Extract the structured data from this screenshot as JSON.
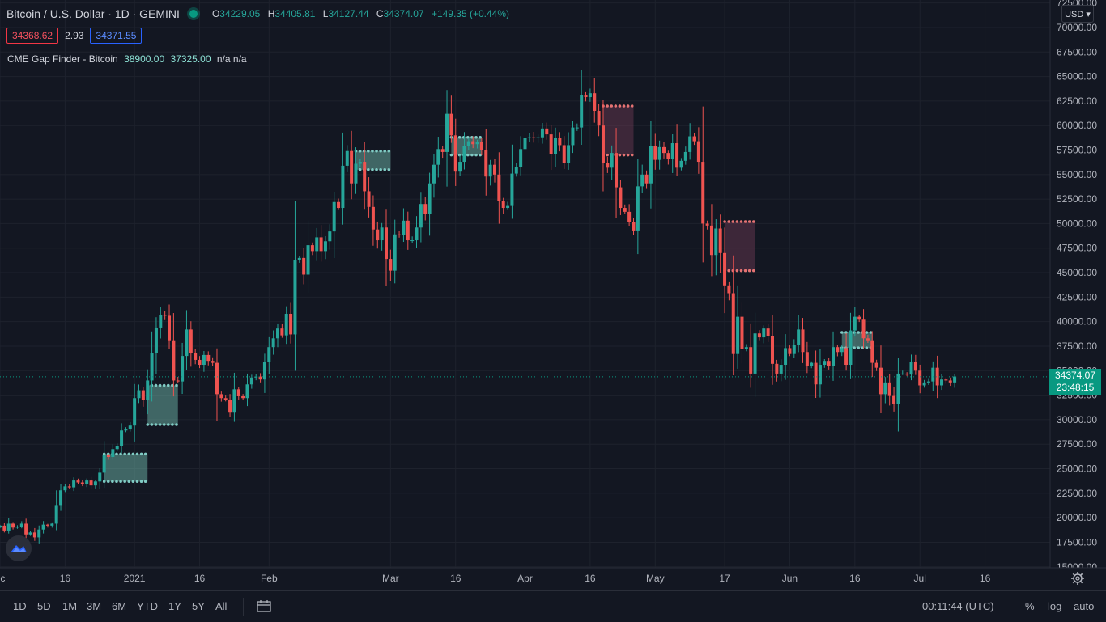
{
  "legend": {
    "title": "Bitcoin / U.S. Dollar · 1D · GEMINI",
    "o_label": "O",
    "o": "34229.05",
    "h_label": "H",
    "h": "34405.81",
    "l_label": "L",
    "l": "34127.44",
    "c_label": "C",
    "c": "34374.07",
    "change": "+149.35 (+0.44%)"
  },
  "quote": {
    "bid": "34368.62",
    "spread": "2.93",
    "ask": "34371.55"
  },
  "indicator": {
    "name": "CME Gap Finder - Bitcoin",
    "v1": "38900.00",
    "v2": "37325.00",
    "v3": "n/a n/a"
  },
  "currency": "USD ▾",
  "last_price": {
    "price": "34374.07",
    "countdown": "23:48:15"
  },
  "bottom": {
    "ranges": [
      "1D",
      "5D",
      "1M",
      "3M",
      "6M",
      "YTD",
      "1Y",
      "5Y",
      "All"
    ],
    "time": "00:11:44 (UTC)",
    "percent": "%",
    "log": "log",
    "auto": "auto"
  },
  "colors": {
    "up": "#26a69a",
    "down": "#ef5350",
    "background": "#131722",
    "grid": "#1e222d"
  },
  "chart_data": {
    "type": "candlestick",
    "title": "Bitcoin / U.S. Dollar · 1D · GEMINI",
    "y_ticks": [
      15000,
      17500,
      20000,
      22500,
      25000,
      27500,
      30000,
      32500,
      35000,
      37500,
      40000,
      42500,
      45000,
      47500,
      50000,
      52500,
      55000,
      57500,
      60000,
      62500,
      65000,
      67500,
      70000,
      72500
    ],
    "y_tick_labels": [
      "15000.00",
      "17500.00",
      "20000.00",
      "22500.00",
      "25000.00",
      "27500.00",
      "30000.00",
      "32500.00",
      "35000.00",
      "37500.00",
      "40000.00",
      "42500.00",
      "45000.00",
      "47500.00",
      "50000.00",
      "52500.00",
      "55000.00",
      "57500.00",
      "60000.00",
      "62500.00",
      "65000.00",
      "67500.00",
      "70000.00",
      "72500.00"
    ],
    "ylim": [
      14900,
      72800
    ],
    "x_start": "2020-12-01",
    "x_end": "2021-07-31",
    "x_ticks": [
      {
        "label": "ec",
        "date": "2020-12-01"
      },
      {
        "label": "16",
        "date": "2020-12-16"
      },
      {
        "label": "2021",
        "date": "2021-01-01"
      },
      {
        "label": "16",
        "date": "2021-01-16"
      },
      {
        "label": "Feb",
        "date": "2021-02-01"
      },
      {
        "label": "Mar",
        "date": "2021-03-01"
      },
      {
        "label": "16",
        "date": "2021-03-16"
      },
      {
        "label": "Apr",
        "date": "2021-04-01"
      },
      {
        "label": "16",
        "date": "2021-04-16"
      },
      {
        "label": "May",
        "date": "2021-05-01"
      },
      {
        "label": "17",
        "date": "2021-05-17"
      },
      {
        "label": "Jun",
        "date": "2021-06-01"
      },
      {
        "label": "16",
        "date": "2021-06-16"
      },
      {
        "label": "Jul",
        "date": "2021-07-01"
      },
      {
        "label": "16",
        "date": "2021-07-16"
      }
    ],
    "last_price": 34374.07,
    "candles_start": "2020-12-01",
    "close": [
      19200,
      18700,
      19400,
      19000,
      19100,
      19400,
      18300,
      18500,
      18000,
      18800,
      19300,
      19200,
      19400,
      21300,
      22800,
      23200,
      23100,
      23800,
      23600,
      23400,
      23800,
      23300,
      23700,
      24600,
      26400,
      26200,
      27000,
      27300,
      28900,
      29000,
      29400,
      32200,
      33000,
      32000,
      34000,
      36800,
      39400,
      40700,
      40600,
      38100,
      34000,
      33900,
      36500,
      39200,
      36800,
      36100,
      35600,
      36600,
      36000,
      35800,
      32600,
      32200,
      32000,
      30800,
      33100,
      32400,
      32200,
      33600,
      34300,
      34400,
      34100,
      35900,
      37400,
      38300,
      39300,
      38600,
      40800,
      38700,
      46300,
      46500,
      44800,
      47800,
      47200,
      48600,
      47200,
      48200,
      49200,
      52200,
      51600,
      55900,
      57400,
      54100,
      56100,
      56300,
      53300,
      51700,
      49400,
      48300,
      49600,
      46400,
      45200,
      48900,
      48800,
      50300,
      48300,
      48300,
      49600,
      52000,
      51000,
      54100,
      56000,
      57600,
      57300,
      61200,
      59000,
      55300,
      56300,
      57900,
      58400,
      58100,
      58300,
      57500,
      54800,
      56000,
      55000,
      52300,
      51600,
      51800,
      55100,
      55800,
      57600,
      58700,
      58800,
      58700,
      58800,
      59700,
      59100,
      57100,
      58700,
      58000,
      56200,
      58000,
      59800,
      59800,
      63100,
      62900,
      63300,
      61500,
      60000,
      56200,
      55700,
      57200,
      53700,
      51600,
      51200,
      50200,
      49300,
      53800,
      55000,
      54100,
      57900,
      56500,
      57800,
      57200,
      56600,
      58200,
      55700,
      56400,
      57300,
      58900,
      58400,
      56300,
      50000,
      49800,
      46800,
      49500,
      47000,
      43700,
      42900,
      36700,
      40500,
      37200,
      37400,
      34700,
      38800,
      38400,
      39300,
      38500,
      35700,
      34700,
      35600,
      37300,
      36700,
      37600,
      39200,
      36900,
      35500,
      35800,
      33600,
      35600,
      36000,
      35500,
      37400,
      36900,
      37300,
      35600,
      39100,
      40500,
      40200,
      38300,
      38100,
      35800,
      35300,
      32600,
      33800,
      32500,
      31600,
      34700,
      34700,
      34600,
      35900,
      35000,
      33500,
      33800,
      33900,
      35300,
      33500,
      34100,
      34000,
      33800,
      34400
    ],
    "gaps": [
      {
        "top": 26500,
        "bottom": 23700,
        "start": "2020-12-25",
        "end": "2021-01-04",
        "direction": "up"
      },
      {
        "top": 33500,
        "bottom": 29500,
        "start": "2021-01-04",
        "end": "2021-01-11",
        "direction": "up"
      },
      {
        "top": 57400,
        "bottom": 55500,
        "start": "2021-02-21",
        "end": "2021-03-01",
        "direction": "up"
      },
      {
        "top": 58800,
        "bottom": 57000,
        "start": "2021-03-15",
        "end": "2021-03-22",
        "direction": "up"
      },
      {
        "top": 62000,
        "bottom": 57000,
        "start": "2021-04-19",
        "end": "2021-04-26",
        "direction": "down"
      },
      {
        "top": 50200,
        "bottom": 45200,
        "start": "2021-05-17",
        "end": "2021-05-24",
        "direction": "down"
      },
      {
        "top": 38900,
        "bottom": 37325,
        "start": "2021-06-13",
        "end": "2021-06-20",
        "direction": "up"
      }
    ]
  }
}
